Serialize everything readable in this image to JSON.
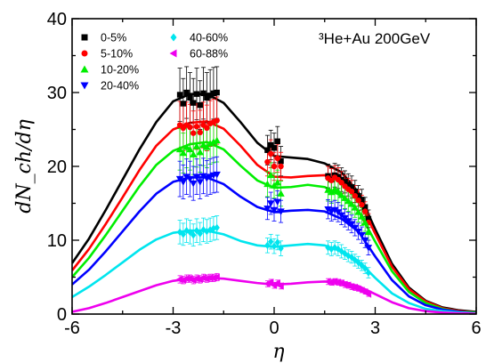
{
  "chart_data": {
    "type": "line",
    "annotation": "³He+Au 200GeV",
    "xlabel": "η",
    "ylabel": "dN_ch/dη",
    "xlim": [
      -6,
      6
    ],
    "ylim": [
      0,
      40
    ],
    "x_ticks": [
      "-6",
      "-3",
      "0",
      "3",
      "6"
    ],
    "y_ticks": [
      "0",
      "10",
      "20",
      "30",
      "40"
    ],
    "legend_position": "top-left",
    "series": [
      {
        "name": "0-5%",
        "color": "#000000",
        "marker": "square",
        "data_x": [
          -2.8,
          -2.7,
          -2.6,
          -2.5,
          -2.4,
          -2.3,
          -2.2,
          -2.1,
          -2.0,
          -1.9,
          -1.8,
          -1.7,
          -0.2,
          -0.1,
          0.0,
          0.1,
          0.2,
          1.6,
          1.7,
          1.8,
          1.9,
          2.0,
          2.1,
          2.2,
          2.3,
          2.4,
          2.5,
          2.6,
          2.7,
          2.8
        ],
        "data_y": [
          29.7,
          28.5,
          30.0,
          29.3,
          28.6,
          29.8,
          28.3,
          29.9,
          29.3,
          29.6,
          29.9,
          30.0,
          22.2,
          22.9,
          22.5,
          23.4,
          20.7,
          18.7,
          18.2,
          18.8,
          18.6,
          18.2,
          17.9,
          17.5,
          17.2,
          16.6,
          16.0,
          15.5,
          14.5,
          12.9
        ],
        "error": [
          3.6,
          3.4,
          3.5,
          3.4,
          3.3,
          3.5,
          3.3,
          3.5,
          3.4,
          3.5,
          3.5,
          3.5,
          2.0,
          2.0,
          2.0,
          2.0,
          2.0,
          1.6,
          1.6,
          1.6,
          1.6,
          1.6,
          1.5,
          1.5,
          1.5,
          1.5,
          1.4,
          1.4,
          1.3,
          1.2
        ],
        "curve_x": [
          -6.0,
          -5.5,
          -5.0,
          -4.5,
          -4.0,
          -3.5,
          -3.0,
          -2.5,
          -2.0,
          -1.5,
          -1.0,
          -0.5,
          0.0,
          0.5,
          1.0,
          1.5,
          2.0,
          2.5,
          3.0,
          3.5,
          4.0,
          4.5,
          5.0,
          5.5,
          6.0
        ],
        "curve_y": [
          6.9,
          10.2,
          14.1,
          18.2,
          22.3,
          26.0,
          28.8,
          29.8,
          29.8,
          28.6,
          26.0,
          23.2,
          21.4,
          21.2,
          21.0,
          20.4,
          19.2,
          16.5,
          11.5,
          6.8,
          3.6,
          1.8,
          0.9,
          0.5,
          0.3
        ]
      },
      {
        "name": "5-10%",
        "color": "#ff0000",
        "marker": "circle",
        "data_x": [
          -2.8,
          -2.7,
          -2.6,
          -2.5,
          -2.4,
          -2.3,
          -2.2,
          -2.1,
          -2.0,
          -1.9,
          -1.8,
          -1.7,
          -0.2,
          -0.1,
          0.0,
          0.1,
          0.2,
          1.6,
          1.7,
          1.8,
          1.9,
          2.0,
          2.1,
          2.2,
          2.3,
          2.4,
          2.5,
          2.6,
          2.7,
          2.8
        ],
        "data_y": [
          25.6,
          25.2,
          25.6,
          25.3,
          24.5,
          25.4,
          24.6,
          25.6,
          25.2,
          25.8,
          26.0,
          26.2,
          20.6,
          21.7,
          20.0,
          21.1,
          20.0,
          18.4,
          18.1,
          18.5,
          18.2,
          17.8,
          17.3,
          16.9,
          16.6,
          16.0,
          15.4,
          14.8,
          13.9,
          12.4
        ],
        "error": [
          3.2,
          3.1,
          3.1,
          3.1,
          3.0,
          3.1,
          3.0,
          3.1,
          3.1,
          3.1,
          3.1,
          3.2,
          1.9,
          1.9,
          1.9,
          1.9,
          1.9,
          1.6,
          1.6,
          1.6,
          1.6,
          1.5,
          1.5,
          1.5,
          1.5,
          1.4,
          1.4,
          1.3,
          1.3,
          1.2
        ],
        "curve_x": [
          -6.0,
          -5.5,
          -5.0,
          -4.5,
          -4.0,
          -3.5,
          -3.0,
          -2.5,
          -2.0,
          -1.5,
          -1.0,
          -0.5,
          0.0,
          0.5,
          1.0,
          1.5,
          2.0,
          2.5,
          3.0,
          3.5,
          4.0,
          4.5,
          5.0,
          5.5,
          6.0
        ],
        "curve_y": [
          5.9,
          8.8,
          12.2,
          15.8,
          19.5,
          22.8,
          25.0,
          25.9,
          26.1,
          25.1,
          22.8,
          20.2,
          18.6,
          18.5,
          18.7,
          18.8,
          18.0,
          15.6,
          10.9,
          6.4,
          3.4,
          1.7,
          0.8,
          0.4,
          0.2
        ]
      },
      {
        "name": "10-20%",
        "color": "#00ee00",
        "marker": "triangle-up",
        "data_x": [
          -2.8,
          -2.7,
          -2.6,
          -2.5,
          -2.4,
          -2.3,
          -2.2,
          -2.1,
          -2.0,
          -1.9,
          -1.8,
          -1.7,
          -0.2,
          -0.1,
          0.0,
          0.1,
          0.2,
          1.6,
          1.7,
          1.8,
          1.9,
          2.0,
          2.1,
          2.2,
          2.3,
          2.4,
          2.5,
          2.6,
          2.7,
          2.8
        ],
        "data_y": [
          22.3,
          21.8,
          22.6,
          22.3,
          21.6,
          22.7,
          21.9,
          22.9,
          22.6,
          23.1,
          23.3,
          23.5,
          17.6,
          18.8,
          17.4,
          17.8,
          16.3,
          16.8,
          16.5,
          16.9,
          16.6,
          16.1,
          15.7,
          15.3,
          14.9,
          14.4,
          13.8,
          13.2,
          12.4,
          11.1
        ],
        "error": [
          2.8,
          2.7,
          2.8,
          2.8,
          2.7,
          2.8,
          2.7,
          2.8,
          2.8,
          2.8,
          2.8,
          2.9,
          1.7,
          1.7,
          1.7,
          1.7,
          1.7,
          1.5,
          1.5,
          1.5,
          1.5,
          1.4,
          1.4,
          1.4,
          1.3,
          1.3,
          1.3,
          1.2,
          1.2,
          1.1
        ],
        "curve_x": [
          -6.0,
          -5.5,
          -5.0,
          -4.5,
          -4.0,
          -3.5,
          -3.0,
          -2.5,
          -2.0,
          -1.5,
          -1.0,
          -0.5,
          0.0,
          0.5,
          1.0,
          1.5,
          2.0,
          2.5,
          3.0,
          3.5,
          4.0,
          4.5,
          5.0,
          5.5,
          6.0
        ],
        "curve_y": [
          5.0,
          7.6,
          10.7,
          14.0,
          17.3,
          20.2,
          22.1,
          23.0,
          23.3,
          22.3,
          20.1,
          18.1,
          17.1,
          17.2,
          17.5,
          17.2,
          16.0,
          14.0,
          9.8,
          5.8,
          3.0,
          1.5,
          0.7,
          0.3,
          0.2
        ]
      },
      {
        "name": "20-40%",
        "color": "#0000ff",
        "marker": "triangle-down",
        "data_x": [
          -2.8,
          -2.7,
          -2.6,
          -2.5,
          -2.4,
          -2.3,
          -2.2,
          -2.1,
          -2.0,
          -1.9,
          -1.8,
          -1.7,
          -0.2,
          -0.1,
          0.0,
          0.1,
          0.2,
          1.6,
          1.7,
          1.8,
          1.9,
          2.0,
          2.1,
          2.2,
          2.3,
          2.4,
          2.5,
          2.6,
          2.7,
          2.8
        ],
        "data_y": [
          18.3,
          17.9,
          18.6,
          18.3,
          17.7,
          18.6,
          17.9,
          18.7,
          18.4,
          18.6,
          18.8,
          18.9,
          14.3,
          15.0,
          14.1,
          15.2,
          13.9,
          14.2,
          13.9,
          14.1,
          13.8,
          13.4,
          13.0,
          12.6,
          12.2,
          11.7,
          11.2,
          10.7,
          10.0,
          9.0
        ],
        "error": [
          2.4,
          2.3,
          2.4,
          2.4,
          2.3,
          2.4,
          2.3,
          2.4,
          2.4,
          2.4,
          2.4,
          2.4,
          1.5,
          1.5,
          1.5,
          1.5,
          1.5,
          1.3,
          1.3,
          1.3,
          1.3,
          1.3,
          1.2,
          1.2,
          1.2,
          1.1,
          1.1,
          1.1,
          1.0,
          1.0
        ],
        "curve_x": [
          -6.0,
          -5.5,
          -5.0,
          -4.5,
          -4.0,
          -3.5,
          -3.0,
          -2.5,
          -2.0,
          -1.5,
          -1.0,
          -0.5,
          0.0,
          0.5,
          1.0,
          1.5,
          2.0,
          2.5,
          3.0,
          3.5,
          4.0,
          4.5,
          5.0,
          5.5,
          6.0
        ],
        "curve_y": [
          4.0,
          6.0,
          8.5,
          11.2,
          13.9,
          16.3,
          17.9,
          18.5,
          18.5,
          17.6,
          15.9,
          14.5,
          13.8,
          14.0,
          14.1,
          13.9,
          12.9,
          11.2,
          7.8,
          4.6,
          2.4,
          1.2,
          0.6,
          0.3,
          0.1
        ]
      },
      {
        "name": "40-60%",
        "color": "#00e5ee",
        "marker": "diamond",
        "data_x": [
          -2.8,
          -2.7,
          -2.6,
          -2.5,
          -2.4,
          -2.3,
          -2.2,
          -2.1,
          -2.0,
          -1.9,
          -1.8,
          -1.7,
          -0.2,
          -0.1,
          0.0,
          0.1,
          0.2,
          1.6,
          1.7,
          1.8,
          1.9,
          2.0,
          2.1,
          2.2,
          2.3,
          2.4,
          2.5,
          2.6,
          2.7,
          2.8
        ],
        "data_y": [
          11.1,
          10.8,
          11.3,
          11.1,
          10.7,
          11.3,
          10.9,
          11.4,
          11.2,
          11.4,
          11.6,
          11.7,
          9.3,
          9.8,
          9.2,
          9.7,
          8.9,
          9.0,
          8.8,
          9.0,
          8.8,
          8.5,
          8.2,
          7.9,
          7.7,
          7.3,
          7.0,
          6.6,
          6.2,
          5.6
        ],
        "error": [
          1.6,
          1.5,
          1.6,
          1.6,
          1.5,
          1.6,
          1.5,
          1.6,
          1.6,
          1.6,
          1.6,
          1.6,
          1.0,
          1.0,
          1.0,
          1.0,
          1.0,
          0.9,
          0.9,
          0.9,
          0.9,
          0.9,
          0.8,
          0.8,
          0.8,
          0.8,
          0.8,
          0.7,
          0.7,
          0.7
        ],
        "curve_x": [
          -6.0,
          -5.5,
          -5.0,
          -4.5,
          -4.0,
          -3.5,
          -3.0,
          -2.5,
          -2.0,
          -1.5,
          -1.0,
          -0.5,
          0.0,
          0.5,
          1.0,
          1.5,
          2.0,
          2.5,
          3.0,
          3.5,
          4.0,
          4.5,
          5.0,
          5.5,
          6.0
        ],
        "curve_y": [
          2.3,
          3.7,
          5.3,
          7.0,
          8.7,
          10.1,
          11.0,
          11.3,
          11.3,
          10.8,
          9.9,
          9.3,
          9.1,
          9.3,
          9.5,
          9.3,
          8.5,
          7.2,
          4.9,
          2.8,
          1.5,
          0.7,
          0.4,
          0.2,
          0.1
        ]
      },
      {
        "name": "60-88%",
        "color": "#ee00ee",
        "marker": "triangle-left",
        "data_x": [
          -2.8,
          -2.7,
          -2.6,
          -2.5,
          -2.4,
          -2.3,
          -2.2,
          -2.1,
          -2.0,
          -1.9,
          -1.8,
          -1.7,
          -0.2,
          -0.1,
          0.0,
          0.1,
          0.2,
          1.6,
          1.7,
          1.8,
          1.9,
          2.0,
          2.1,
          2.2,
          2.3,
          2.4,
          2.5,
          2.6,
          2.7,
          2.8
        ],
        "data_y": [
          4.7,
          4.6,
          4.8,
          4.8,
          4.6,
          4.8,
          4.7,
          4.9,
          4.8,
          4.9,
          4.9,
          5.0,
          4.1,
          4.3,
          3.9,
          4.2,
          3.8,
          4.4,
          4.3,
          4.4,
          4.3,
          4.2,
          4.0,
          3.9,
          3.7,
          3.6,
          3.4,
          3.2,
          3.0,
          2.7
        ],
        "error": [
          0.5,
          0.5,
          0.5,
          0.5,
          0.5,
          0.5,
          0.5,
          0.5,
          0.5,
          0.5,
          0.5,
          0.5,
          0.4,
          0.4,
          0.4,
          0.4,
          0.4,
          0.4,
          0.4,
          0.4,
          0.4,
          0.4,
          0.4,
          0.4,
          0.4,
          0.4,
          0.3,
          0.3,
          0.3,
          0.3
        ],
        "curve_x": [
          -6.0,
          -5.5,
          -5.0,
          -4.5,
          -4.0,
          -3.5,
          -3.0,
          -2.5,
          -2.0,
          -1.5,
          -1.0,
          -0.5,
          0.0,
          0.5,
          1.0,
          1.5,
          2.0,
          2.5,
          3.0,
          3.5,
          4.0,
          4.5,
          5.0,
          5.5,
          6.0
        ],
        "curve_y": [
          0.3,
          0.8,
          1.5,
          2.3,
          3.1,
          3.9,
          4.5,
          4.8,
          4.9,
          4.8,
          4.5,
          4.2,
          4.0,
          4.1,
          4.3,
          4.4,
          4.3,
          3.8,
          2.7,
          1.6,
          0.8,
          0.4,
          0.2,
          0.1,
          0.05
        ]
      }
    ]
  }
}
